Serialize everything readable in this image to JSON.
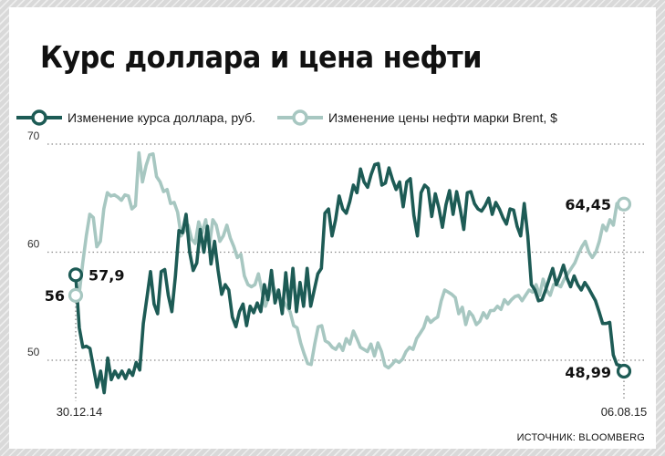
{
  "title": "Курс доллара и цена нефти",
  "legend": {
    "usd": "Изменение курса доллара, руб.",
    "brent": "Изменение цены нефти марки Brent, $"
  },
  "source": "ИСТОЧНИК: BLOOMBERG",
  "colors": {
    "usd": "#1d5b55",
    "brent": "#a7c7c1",
    "grid": "#8a8a8a"
  },
  "chart_data": {
    "type": "line",
    "title": "Курс доллара и цена нефти",
    "ylim": [
      43,
      75
    ],
    "yticks": [
      50,
      60,
      70
    ],
    "grid": true,
    "legend_position": "top-left",
    "x_start_label": "30.12.14",
    "x_end_label": "06.08.15",
    "start_value_labels": {
      "usd": "57,9",
      "brent": "56"
    },
    "end_value_labels": {
      "usd": "48,99",
      "brent": "64,45"
    },
    "series": [
      {
        "name": "Изменение курса доллара, руб.",
        "key": "usd",
        "values": [
          57.9,
          53.0,
          51.2,
          51.3,
          51.1,
          49.3,
          47.5,
          49.0,
          47.0,
          50.2,
          48.2,
          49.0,
          48.4,
          49.0,
          48.3,
          49.1,
          48.6,
          49.8,
          49.1,
          53.4,
          55.8,
          58.2,
          55.2,
          54.3,
          58.2,
          58.4,
          56.0,
          54.5,
          57.8,
          62.0,
          61.8,
          63.5,
          60.0,
          58.3,
          59.0,
          62.1,
          60.0,
          62.4,
          58.9,
          61.0,
          58.3,
          56.1,
          57.0,
          56.5,
          54.0,
          53.1,
          54.5,
          55.2,
          53.2,
          55.0,
          54.4,
          55.3,
          54.5,
          57.0,
          55.6,
          58.3,
          55.3,
          56.5,
          54.3,
          58.1,
          54.8,
          58.5,
          54.5,
          57.2,
          55.0,
          58.5,
          55.0,
          56.5,
          58.0,
          58.5,
          63.6,
          64.0,
          61.5,
          63.0,
          65.2,
          64.0,
          63.6,
          64.7,
          66.2,
          65.5,
          67.7,
          66.5,
          66.0,
          67.2,
          68.1,
          68.2,
          66.2,
          66.4,
          67.8,
          66.7,
          65.8,
          66.5,
          64.2,
          66.5,
          66.8,
          63.4,
          61.5,
          65.5,
          66.2,
          65.9,
          63.3,
          65.4,
          64.1,
          62.3,
          64.4,
          65.7,
          63.5,
          65.6,
          64.0,
          62.1,
          65.5,
          65.6,
          64.5,
          64.0,
          63.8,
          64.3,
          65.0,
          63.5,
          64.6,
          64.0,
          63.2,
          62.6,
          64.0,
          63.9,
          62.4,
          61.5,
          64.5,
          61.5,
          57.0,
          56.5,
          55.5,
          55.6,
          56.5,
          57.5,
          58.5,
          57.0,
          57.8,
          58.8,
          57.6,
          56.8,
          57.8,
          57.0,
          56.5,
          57.2,
          56.7,
          56.1,
          55.5,
          54.5,
          53.4,
          53.4,
          53.5,
          50.5,
          49.6,
          49.5,
          48.99
        ]
      },
      {
        "name": "Изменение цены нефти марки Brent, $",
        "key": "brent",
        "values": [
          56.0,
          56.2,
          59.0,
          61.5,
          63.5,
          63.2,
          60.5,
          61.0,
          64.0,
          65.5,
          65.2,
          65.3,
          65.1,
          64.8,
          65.3,
          65.2,
          64.0,
          64.3,
          69.2,
          66.5,
          68.0,
          69.0,
          69.1,
          67.0,
          66.5,
          65.6,
          65.8,
          64.5,
          64.6,
          63.7,
          61.5,
          62.0,
          62.5,
          61.2,
          60.8,
          62.8,
          61.8,
          63.0,
          60.5,
          63.0,
          62.5,
          61.0,
          61.5,
          62.5,
          61.3,
          60.5,
          59.5,
          59.8,
          57.8,
          57.0,
          56.8,
          57.0,
          58.0,
          56.4,
          55.0,
          56.0,
          57.0,
          56.2,
          55.8,
          55.5,
          55.0,
          54.5,
          53.2,
          53.0,
          51.6,
          50.6,
          49.7,
          49.6,
          51.5,
          53.1,
          53.2,
          51.8,
          51.6,
          51.2,
          51.0,
          51.5,
          50.9,
          52.0,
          51.5,
          52.7,
          52.0,
          51.2,
          51.0,
          50.8,
          51.5,
          50.4,
          51.6,
          50.8,
          49.5,
          49.3,
          49.6,
          50.0,
          49.8,
          50.1,
          50.8,
          51.2,
          51.0,
          52.0,
          52.5,
          53.0,
          54.0,
          53.5,
          53.8,
          54.0,
          55.5,
          56.5,
          56.3,
          56.1,
          55.8,
          54.3,
          54.9,
          53.3,
          54.5,
          54.1,
          53.3,
          53.6,
          54.4,
          53.9,
          54.6,
          54.6,
          55.0,
          54.7,
          55.6,
          55.2,
          55.6,
          55.9,
          56.0,
          55.5,
          56.0,
          56.5,
          56.3,
          57.0,
          56.0,
          57.5,
          56.5,
          56.0,
          57.0,
          57.0,
          56.8,
          57.5,
          58.0,
          58.5,
          59.0,
          59.8,
          60.5,
          61.0,
          60.0,
          59.5,
          60.0,
          61.0,
          62.5,
          62.0,
          63.0,
          62.5,
          64.5,
          64.0,
          64.45
        ]
      }
    ]
  }
}
